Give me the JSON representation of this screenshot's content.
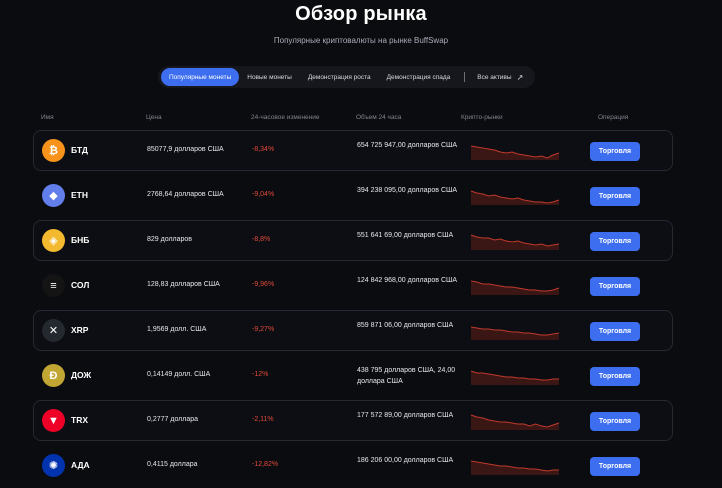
{
  "page": {
    "title": "Обзор рынка",
    "subtitle": "Популярные криптовалюты на рынке BuffSwap"
  },
  "tabs": [
    {
      "label": "Популярные монеты",
      "active": true
    },
    {
      "label": "Новые монеты",
      "active": false
    },
    {
      "label": "Демонстрация роста",
      "active": false
    },
    {
      "label": "Демонстрация спада",
      "active": false
    },
    {
      "label": "Все активы",
      "active": false
    }
  ],
  "columns": {
    "name": "Имя",
    "price": "Цена",
    "change": "24-часовое изменение",
    "volume": "Объем 24 часа",
    "markets": "Крипто-рынки",
    "operation": "Операция"
  },
  "trade_label": "Торговля",
  "colors": {
    "accent": "#3d6ef0",
    "negative": "#e2493a",
    "background": "#0b0c10"
  },
  "coins": [
    {
      "symbol": "БТД",
      "price": "85077,9 долларов США",
      "change": "-8,34%",
      "volume": "654 725 947,00 долларов США",
      "icon": "bitcoin-icon",
      "color": "#f7931a",
      "glyph": "₿",
      "boxed": true
    },
    {
      "symbol": "ETH",
      "price": "2768,64 долларов США",
      "change": "-9,04%",
      "volume": "394 238 095,00 долларов США",
      "icon": "ethereum-icon",
      "color": "#627eea",
      "glyph": "◆",
      "boxed": false
    },
    {
      "symbol": "БНБ",
      "price": "829 долларов",
      "change": "-8,8%",
      "volume": "551 641 69,00 долларов США",
      "icon": "bnb-icon",
      "color": "#f3ba2f",
      "glyph": "◈",
      "boxed": true
    },
    {
      "symbol": "СОЛ",
      "price": "128,83 долларов США",
      "change": "-9,96%",
      "volume": "124 842 968,00 долларов США",
      "icon": "solana-icon",
      "color": "#141414",
      "glyph": "≡",
      "boxed": false
    },
    {
      "symbol": "XRP",
      "price": "1,9569 долл. США",
      "change": "-9,27%",
      "volume": "859 871 06,00 долларов США",
      "icon": "xrp-icon",
      "color": "#23292f",
      "glyph": "✕",
      "boxed": true
    },
    {
      "symbol": "ДОЖ",
      "price": "0,14149 долл. США",
      "change": "-12%",
      "volume": "438 795 долларов США, 24,00 доллара США",
      "icon": "dogecoin-icon",
      "color": "#c2a633",
      "glyph": "Ð",
      "boxed": false
    },
    {
      "symbol": "TRX",
      "price": "0,2777 доллара",
      "change": "-2,11%",
      "volume": "177 572 89,00 долларов США",
      "icon": "tron-icon",
      "color": "#ef0027",
      "glyph": "▼",
      "boxed": true
    },
    {
      "symbol": "АДА",
      "price": "0,4115 доллара",
      "change": "-12,82%",
      "volume": "186 206 00,00 долларов США",
      "icon": "cardano-icon",
      "color": "#0033ad",
      "glyph": "✺",
      "boxed": false
    }
  ]
}
